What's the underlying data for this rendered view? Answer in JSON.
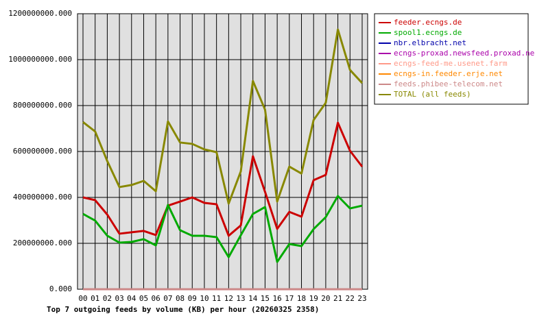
{
  "chart_data": {
    "type": "line",
    "title": "Top 7 outgoing feeds by volume (KB) per hour (20260325 2358)",
    "categories": [
      "00",
      "01",
      "02",
      "03",
      "04",
      "05",
      "06",
      "07",
      "08",
      "09",
      "10",
      "11",
      "12",
      "13",
      "14",
      "15",
      "16",
      "17",
      "18",
      "19",
      "20",
      "21",
      "22",
      "23"
    ],
    "ylim": [
      0,
      1200000000
    ],
    "yticks": [
      {
        "value": 0,
        "label": "0.000"
      },
      {
        "value": 200000000,
        "label": "200000000.000"
      },
      {
        "value": 400000000,
        "label": "400000000.000"
      },
      {
        "value": 600000000,
        "label": "600000000.000"
      },
      {
        "value": 800000000,
        "label": "800000000.000"
      },
      {
        "value": 1000000000,
        "label": "1000000000.000"
      },
      {
        "value": 1200000000,
        "label": "1200000000.000"
      }
    ],
    "grid": true,
    "series": [
      {
        "name": "feeder.ecngs.de",
        "color": "#cc0000",
        "values": [
          400000000,
          388000000,
          325000000,
          242000000,
          248000000,
          254000000,
          236000000,
          364000000,
          382000000,
          400000000,
          376000000,
          370000000,
          233000000,
          278000000,
          579000000,
          424000000,
          263000000,
          337000000,
          316000000,
          475000000,
          498000000,
          725000000,
          603000000,
          534000000
        ]
      },
      {
        "name": "spool1.ecngs.de",
        "color": "#00aa00",
        "values": [
          328000000,
          299000000,
          233000000,
          203000000,
          206000000,
          218000000,
          191000000,
          367000000,
          257000000,
          233000000,
          233000000,
          227000000,
          140000000,
          235000000,
          328000000,
          358000000,
          119000000,
          197000000,
          188000000,
          262000000,
          314000000,
          406000000,
          352000000,
          364000000
        ]
      },
      {
        "name": "nbr.elbracht.net",
        "color": "#0000aa",
        "values": [
          0,
          0,
          0,
          0,
          0,
          0,
          0,
          0,
          0,
          0,
          0,
          0,
          0,
          0,
          0,
          0,
          0,
          0,
          0,
          0,
          0,
          0,
          0,
          0
        ]
      },
      {
        "name": "ecngs-proxad.newsfeed.proxad.net",
        "color": "#aa00aa",
        "values": [
          0,
          0,
          0,
          0,
          0,
          0,
          0,
          0,
          0,
          0,
          0,
          0,
          0,
          0,
          0,
          0,
          0,
          0,
          0,
          0,
          0,
          0,
          0,
          0
        ]
      },
      {
        "name": "ecngs-feed-me.usenet.farm",
        "color": "#ff9988",
        "values": [
          0,
          0,
          0,
          0,
          0,
          0,
          0,
          0,
          0,
          0,
          0,
          0,
          0,
          0,
          0,
          0,
          0,
          0,
          0,
          0,
          0,
          0,
          0,
          0
        ]
      },
      {
        "name": "ecngs-in.feeder.erje.net",
        "color": "#ff8800",
        "values": [
          0,
          0,
          0,
          0,
          0,
          0,
          0,
          0,
          0,
          0,
          0,
          0,
          0,
          0,
          0,
          0,
          0,
          0,
          0,
          0,
          0,
          0,
          0,
          0
        ]
      },
      {
        "name": "feeds.phibee-telecom.net",
        "color": "#cc8888",
        "values": [
          0,
          0,
          0,
          0,
          0,
          0,
          0,
          0,
          0,
          0,
          0,
          0,
          0,
          0,
          0,
          0,
          0,
          0,
          0,
          0,
          0,
          0,
          0,
          0
        ]
      },
      {
        "name": "TOTAL (all feeds)",
        "color": "#888800",
        "values": [
          728000000,
          687000000,
          558000000,
          445000000,
          454000000,
          472000000,
          427000000,
          731000000,
          639000000,
          633000000,
          609000000,
          597000000,
          373000000,
          513000000,
          907000000,
          782000000,
          382000000,
          534000000,
          504000000,
          737000000,
          812000000,
          1131000000,
          955000000,
          898000000
        ]
      }
    ]
  }
}
